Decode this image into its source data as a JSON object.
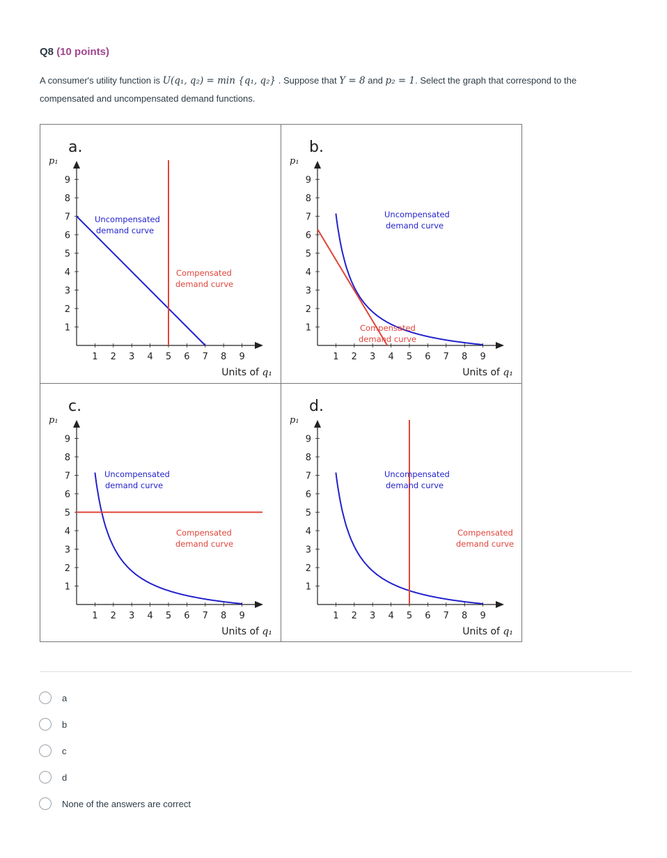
{
  "question": {
    "number": "Q8",
    "points": "(10 points)",
    "text_before": "A consumer's utility function is",
    "utility_expr": "U(q₁, q₂) = min {q₁, q₂}",
    "text_middle": ". Suppose that",
    "condition_expr": "Y = 8",
    "text_and": "and",
    "price_expr": "p₂ = 1",
    "text_after": ". Select the graph that correspond to the compensated and uncompensated demand functions."
  },
  "figure": {
    "y_axis_label": "p₁",
    "x_axis_label_text": "Units of",
    "x_axis_label_var": "q₁",
    "ticks": [
      "1",
      "2",
      "3",
      "4",
      "5",
      "6",
      "7",
      "8",
      "9"
    ],
    "uncompensated_line1": "Uncompensated",
    "uncompensated_line2": "demand curve",
    "compensated_line1": "Compensated",
    "compensated_line2": "demand curve",
    "colors": {
      "uncompensated": "#2222cc",
      "compensated": "#e0443a",
      "axes": "#222222"
    },
    "panels": [
      {
        "letter": "a.",
        "uncompensated": "line from (0,7) to (7,0)",
        "compensated": "vertical line at q1=5"
      },
      {
        "letter": "b.",
        "uncompensated": "hyperbola p1 = 8/q1 - 1 style curve",
        "compensated": "line from (0,6.3) to (3.8,0)"
      },
      {
        "letter": "c.",
        "uncompensated": "hyperbola",
        "compensated": "horizontal line at p1=5"
      },
      {
        "letter": "d.",
        "uncompensated": "hyperbola",
        "compensated": "vertical line at q1=5"
      }
    ]
  },
  "options": [
    "a",
    "b",
    "c",
    "d",
    "None of the answers are correct"
  ]
}
